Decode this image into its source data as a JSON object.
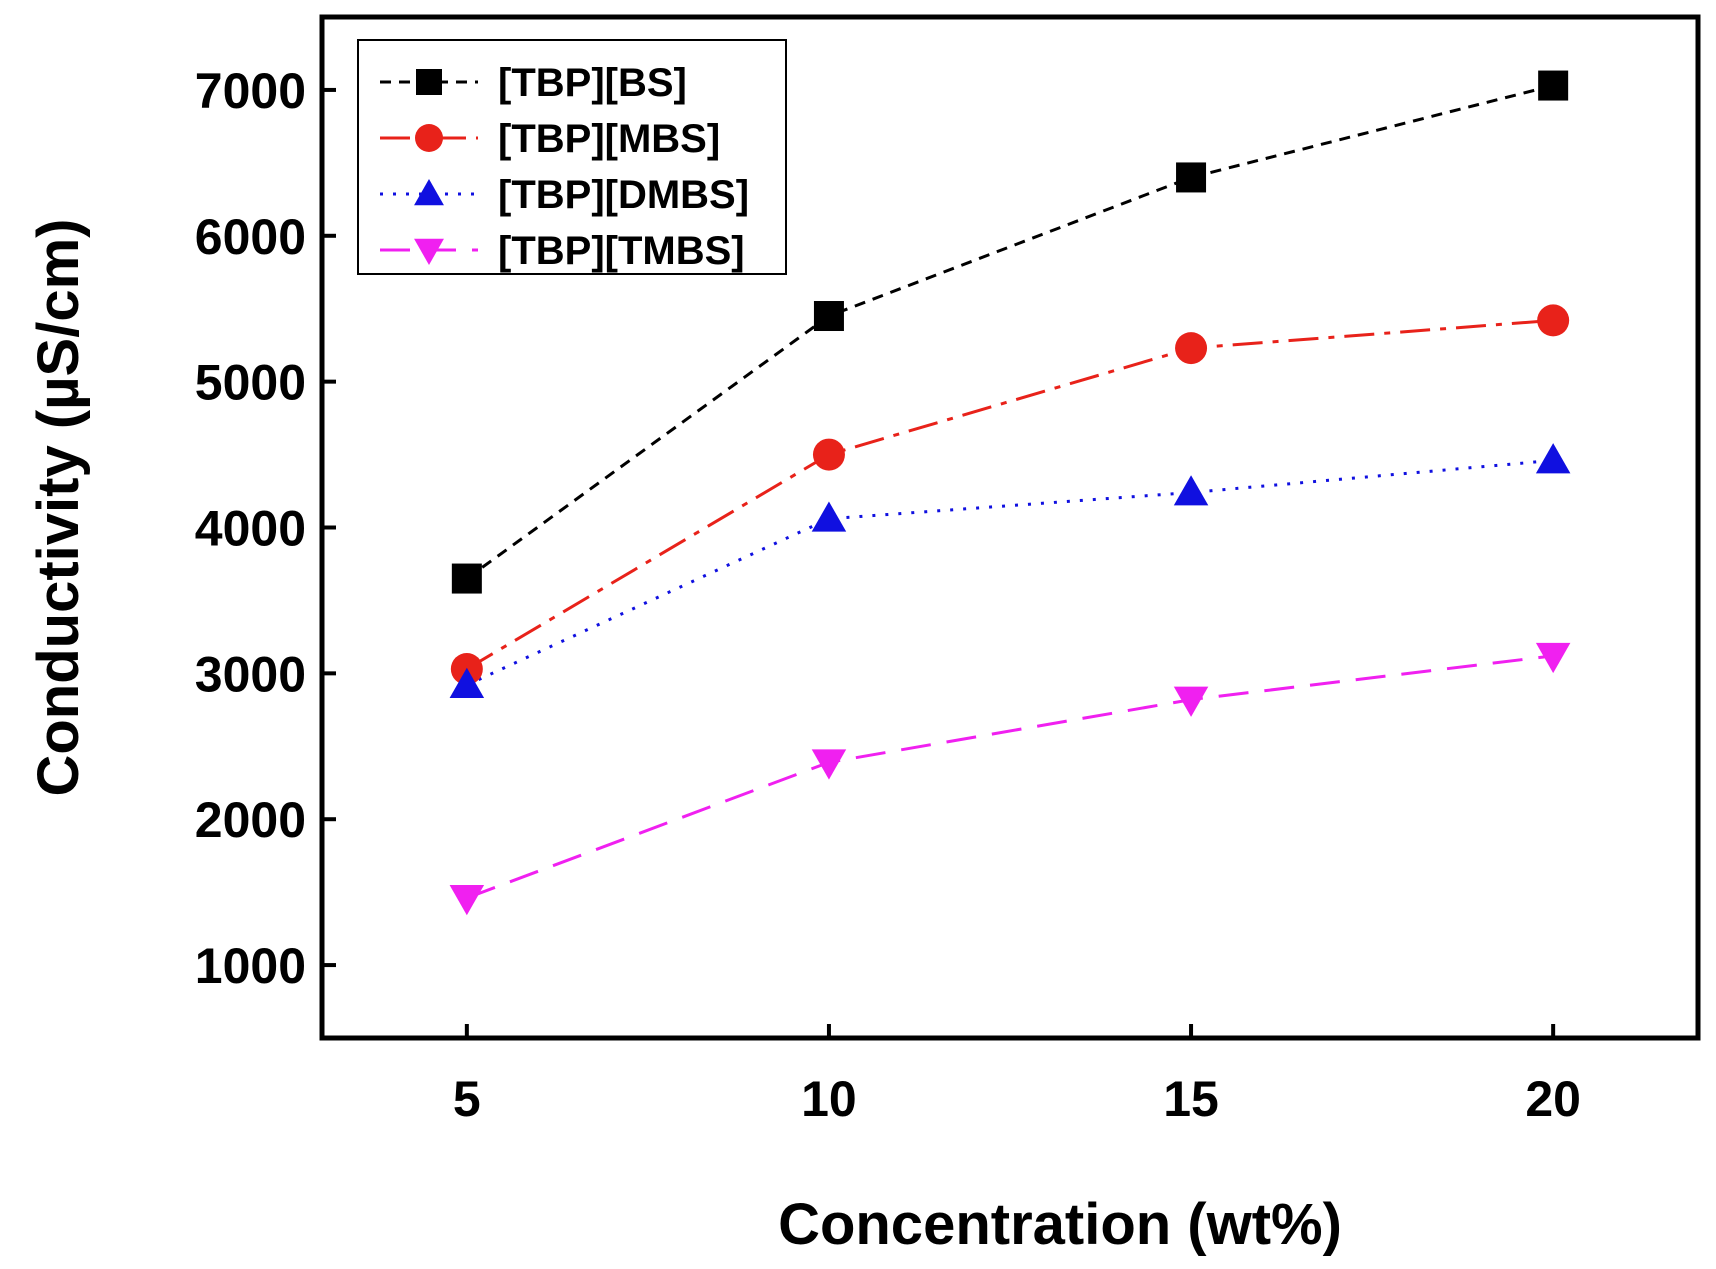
{
  "chart_data": {
    "type": "line",
    "title": "",
    "xlabel": "Concentration (wt%)",
    "ylabel": "Conductivity (µS/cm)",
    "xlim": [
      3,
      22
    ],
    "ylim": [
      500,
      7500
    ],
    "x": [
      5,
      10,
      15,
      20
    ],
    "xticks": [
      "5",
      "10",
      "15",
      "20"
    ],
    "yticks": [
      "1000",
      "2000",
      "3000",
      "4000",
      "5000",
      "6000",
      "7000"
    ],
    "grid": false,
    "legend_position": "top-left",
    "series": [
      {
        "name": "[TBP][BS]",
        "values": [
          3650,
          5450,
          6400,
          7030
        ],
        "color": "#000000",
        "marker": "square",
        "line_style": "dashed"
      },
      {
        "name": "[TBP][MBS]",
        "values": [
          3030,
          4500,
          5230,
          5420
        ],
        "color": "#e8221a",
        "marker": "circle",
        "line_style": "dash-dot"
      },
      {
        "name": "[TBP][DMBS]",
        "values": [
          2920,
          4060,
          4240,
          4460
        ],
        "color": "#1010e0",
        "marker": "triangle-up",
        "line_style": "dotted"
      },
      {
        "name": "[TBP][TMBS]",
        "values": [
          1460,
          2390,
          2820,
          3120
        ],
        "color": "#f020f0",
        "marker": "triangle-down",
        "line_style": "long-dash"
      }
    ]
  }
}
